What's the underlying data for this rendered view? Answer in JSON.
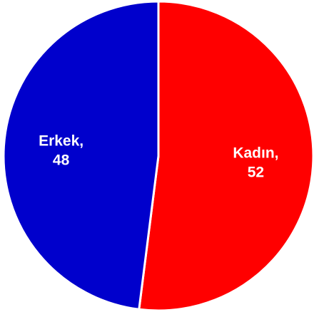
{
  "chart_data": {
    "type": "pie",
    "title": "",
    "slices": [
      {
        "label": "Kadın",
        "value": 52,
        "color": "#ff0000",
        "label_line1": "Kadın,",
        "label_line2": "52"
      },
      {
        "label": "Erkek",
        "value": 48,
        "color": "#0000cc",
        "label_line1": "Erkek,",
        "label_line2": "48"
      }
    ],
    "legend": "none",
    "start_angle_deg": 0,
    "direction": "clockwise"
  }
}
